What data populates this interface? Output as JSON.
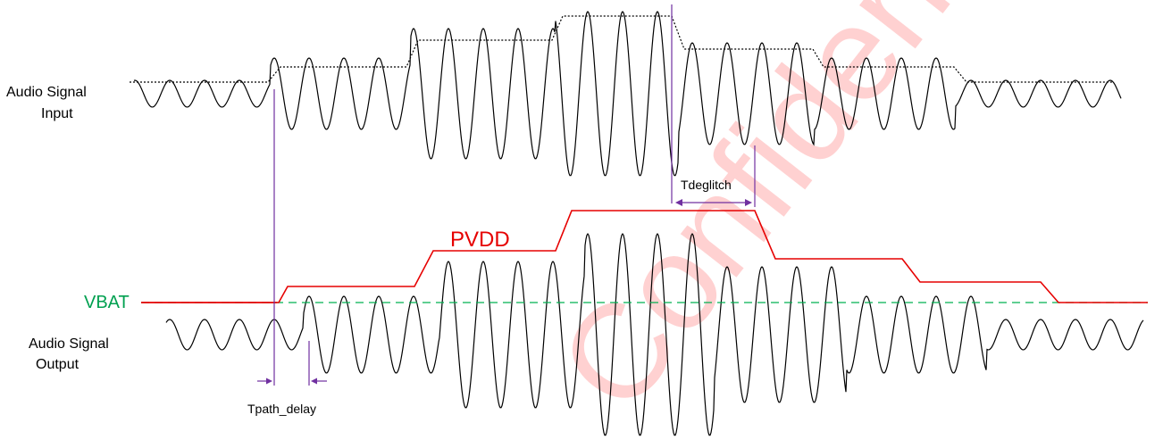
{
  "labels": {
    "input_line1": "Audio Signal",
    "input_line2": "Input",
    "output_line1": "Audio Signal",
    "output_line2": "Output",
    "pvdd": "PVDD",
    "vbat": "VBAT",
    "tdeglitch": "Tdeglitch",
    "tpath_delay": "Tpath_delay",
    "watermark": "Confidential"
  },
  "colors": {
    "signal": "#000000",
    "envelope": "#000000",
    "pvdd": "#e60000",
    "vbat": "#00a050",
    "vbat_line": "#00b050",
    "marker": "#7030a0",
    "watermark": "#ff9a9a"
  }
}
